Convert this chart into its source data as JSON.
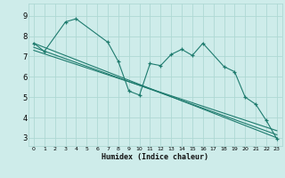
{
  "xlabel": "Humidex (Indice chaleur)",
  "ylabel": "",
  "bg_color": "#ceecea",
  "line_color": "#1e7b6e",
  "grid_color": "#aed8d4",
  "x_ticks": [
    0,
    1,
    2,
    3,
    4,
    5,
    6,
    7,
    8,
    9,
    10,
    11,
    12,
    13,
    14,
    15,
    16,
    17,
    18,
    19,
    20,
    21,
    22,
    23
  ],
  "y_ticks": [
    3,
    4,
    5,
    6,
    7,
    8,
    9
  ],
  "xlim": [
    -0.5,
    23.5
  ],
  "ylim": [
    2.6,
    9.6
  ],
  "series1_x": [
    0,
    1,
    3,
    4,
    7,
    8,
    9,
    10,
    11,
    12,
    13,
    14,
    15,
    16,
    18,
    19,
    20,
    21,
    22,
    23
  ],
  "series1_y": [
    7.65,
    7.25,
    8.7,
    8.85,
    7.7,
    6.75,
    5.3,
    5.1,
    6.65,
    6.55,
    7.1,
    7.35,
    7.05,
    7.65,
    6.5,
    6.25,
    5.0,
    4.65,
    3.85,
    2.95
  ],
  "trend1_x": [
    0,
    23
  ],
  "trend1_y": [
    7.65,
    3.0
  ],
  "trend2_x": [
    0,
    23
  ],
  "trend2_y": [
    7.45,
    3.15
  ],
  "trend3_x": [
    0,
    23
  ],
  "trend3_y": [
    7.3,
    3.35
  ]
}
